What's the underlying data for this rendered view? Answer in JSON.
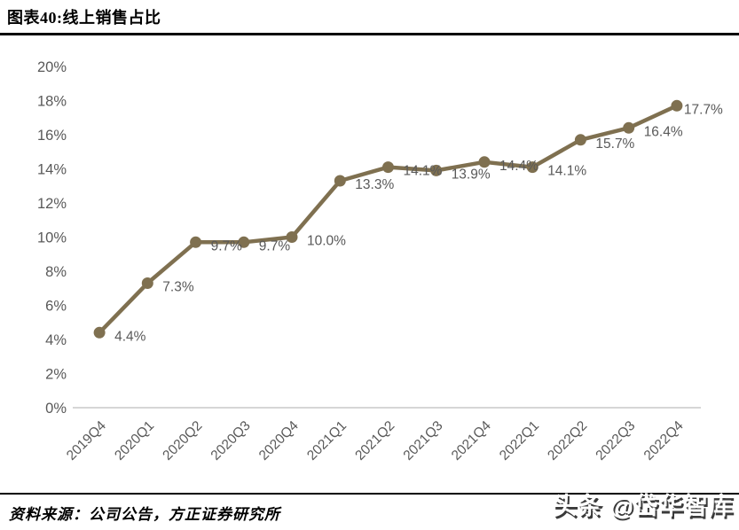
{
  "header": {
    "title": "图表40:线上销售占比"
  },
  "footer": {
    "source": "资料来源：公司公告，方正证券研究所",
    "watermark": "头条 @岱华智库"
  },
  "chart_data": {
    "type": "line",
    "title": "线上销售占比",
    "categories": [
      "2019Q4",
      "2020Q1",
      "2020Q2",
      "2020Q3",
      "2020Q4",
      "2021Q1",
      "2021Q2",
      "2021Q3",
      "2021Q4",
      "2022Q1",
      "2022Q2",
      "2022Q3",
      "2022Q4"
    ],
    "values": [
      4.4,
      7.3,
      9.7,
      9.7,
      10.0,
      13.3,
      14.1,
      13.9,
      14.4,
      14.1,
      15.7,
      16.4,
      17.7
    ],
    "point_labels": [
      "4.4%",
      "7.3%",
      "9.7%",
      "9.7%",
      "10.0%",
      "13.3%",
      "14.1%",
      "13.9%",
      "14.4%",
      "14.1%",
      "15.7%",
      "16.4%",
      "17.7%"
    ],
    "ylim": [
      0,
      20
    ],
    "ytick_step": 2,
    "ytick_labels": [
      "0%",
      "2%",
      "4%",
      "6%",
      "8%",
      "10%",
      "12%",
      "14%",
      "16%",
      "18%",
      "20%"
    ],
    "xlabel": "",
    "ylabel": "",
    "grid": false,
    "legend_position": "none",
    "colors": {
      "line": "#7f7050",
      "marker": "#7f7050",
      "tick_text": "#595959",
      "data_label_text": "#595959",
      "axis_line": "#c9c9c9"
    }
  }
}
